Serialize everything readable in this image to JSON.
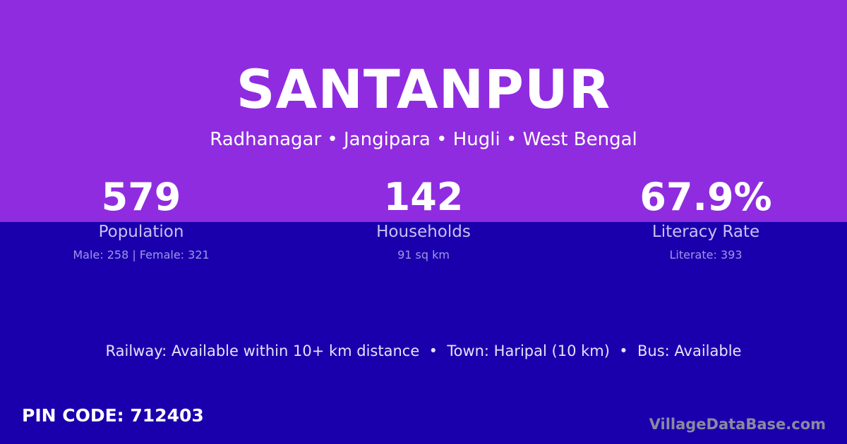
{
  "colors": {
    "top_background": "#8F2CE0",
    "bottom_background": "#1A00AD"
  },
  "village": {
    "name": "SANTANPUR",
    "location": "Radhanagar • Jangipara • Hugli • West Bengal"
  },
  "stats": [
    {
      "value": "579",
      "label": "Population",
      "detail": "Male: 258 | Female: 321"
    },
    {
      "value": "142",
      "label": "Households",
      "detail": "91 sq km"
    },
    {
      "value": "67.9%",
      "label": "Literacy Rate",
      "detail": "Literate: 393"
    }
  ],
  "connectivity": "Railway: Available within 10+ km distance  •  Town: Haripal (10 km)  •  Bus: Available",
  "pin_code": "PIN CODE: 712403",
  "watermark": "VillageDataBase.com"
}
